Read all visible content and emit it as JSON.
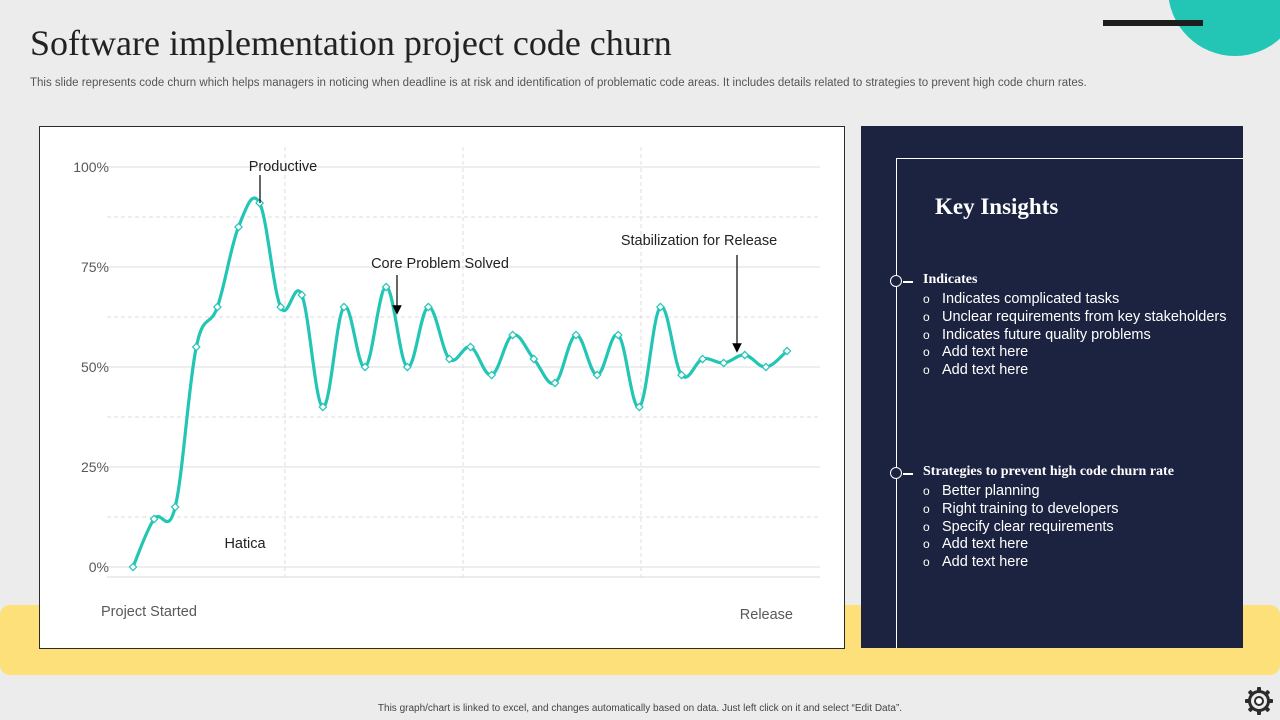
{
  "title": "Software implementation project code churn",
  "subtitle": "This slide represents code churn which helps managers in noticing when deadline is at risk and identification of problematic code areas. It includes details related to strategies to prevent high code churn rates.",
  "footer_note": "This graph/chart is linked to excel, and changes automatically based on data. Just left click on it and select “Edit Data”.",
  "colors": {
    "accent": "#23c5b5",
    "panel": "#1c2340",
    "band": "#fde07a"
  },
  "icons": {
    "settings": "gear-icon"
  },
  "insights": {
    "title": "Key Insights",
    "sections": [
      {
        "heading": "Indicates",
        "items": [
          "Indicates complicated tasks",
          "Unclear requirements from key stakeholders",
          "Indicates future quality problems",
          "Add text here",
          "Add text here"
        ]
      },
      {
        "heading": "Strategies to prevent high code churn rate",
        "items": [
          "Better planning",
          "Right training to developers",
          "Specify clear requirements",
          "Add text here",
          "Add text here"
        ]
      }
    ]
  },
  "chart_data": {
    "type": "line",
    "ylim": [
      0,
      100
    ],
    "y_ticks": [
      "0%",
      "25%",
      "50%",
      "75%",
      "100%"
    ],
    "y_tick_values": [
      0,
      25,
      50,
      75,
      100
    ],
    "x_label_start": "Project Started",
    "x_label_end": "Release",
    "grid": true,
    "series": [
      {
        "values": [
          0,
          12,
          15,
          55,
          65,
          85,
          91,
          65,
          68,
          40,
          65,
          50,
          70,
          50,
          65,
          52,
          55,
          48,
          58,
          52,
          46,
          58,
          48,
          58,
          40,
          65,
          48,
          52,
          51,
          53,
          50,
          54
        ]
      }
    ],
    "annotations": [
      {
        "text": "Productive",
        "point_index": 6
      },
      {
        "text": "Core Problem Solved",
        "point_index": 12
      },
      {
        "text": "Stabilization for Release",
        "point_index": 28
      },
      {
        "text": "Hatica",
        "point_index": null
      }
    ]
  }
}
